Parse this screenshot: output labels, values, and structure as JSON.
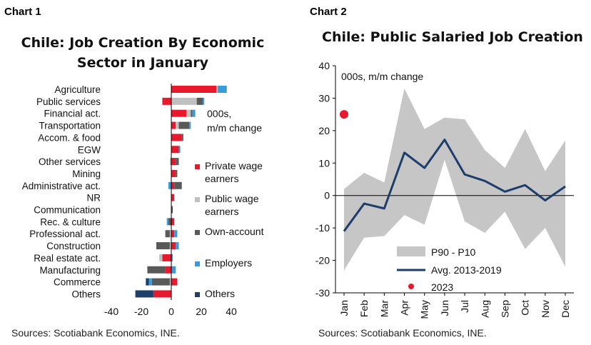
{
  "chart_data": [
    {
      "label": "Chart 1",
      "type": "bar",
      "orientation": "horizontal",
      "stacked": true,
      "title_lines": [
        "Chile: Job Creation By Economic",
        "Sector in January"
      ],
      "unit_note_lines": [
        "000s,",
        "m/m change"
      ],
      "categories": [
        "Agriculture",
        "Public services",
        "Financial act.",
        "Transportation",
        "Accom. & food",
        "EGW",
        "Other services",
        "Mining",
        "Administrative act.",
        "NR",
        "Communication",
        "Rec. & culture",
        "Professional act.",
        "Construction",
        "Real estate act.",
        "Manufacturing",
        "Commerce",
        "Others"
      ],
      "series": [
        {
          "name": "Private wage earners",
          "color": "#e8192c",
          "values": [
            30,
            -6,
            10,
            3,
            7,
            5,
            3,
            3,
            2,
            2,
            0,
            2,
            2,
            3,
            -6,
            -4,
            4,
            -12
          ]
        },
        {
          "name": "Public wage earners",
          "color": "#c0c0c0",
          "values": [
            1,
            17,
            3,
            2,
            0,
            0,
            -1,
            0,
            0,
            0,
            0,
            0,
            -1,
            -1,
            -2,
            0,
            -1,
            0
          ]
        },
        {
          "name": "Own-account",
          "color": "#595959",
          "values": [
            0,
            4,
            1,
            7,
            1,
            0,
            2,
            1,
            5,
            0,
            1,
            -2,
            -3,
            -9,
            0,
            -12,
            -12,
            0
          ]
        },
        {
          "name": "Employers",
          "color": "#3b9bd6",
          "values": [
            6,
            1,
            2,
            1,
            0,
            1,
            0,
            0,
            -2,
            0,
            0,
            -1,
            2,
            2,
            1,
            3,
            -2,
            0
          ]
        },
        {
          "name": "Others",
          "color": "#1f3f6b",
          "values": [
            0,
            0,
            0,
            0,
            0,
            0,
            0,
            0,
            0,
            0,
            0,
            0,
            0,
            0,
            0,
            0,
            -2,
            -12
          ]
        }
      ],
      "xlim": [
        -40,
        40
      ],
      "xticks": [
        "-40",
        "-20",
        "0",
        "20",
        "40"
      ],
      "source": "Sources: Scotiabank Economics, INE."
    },
    {
      "label": "Chart 2",
      "type": "line",
      "title": "Chile: Public Salaried Job Creation",
      "unit_note": "000s, m/m change",
      "x": [
        "Jan",
        "Feb",
        "Mar",
        "Apr",
        "May",
        "Jun",
        "Jul",
        "Aug",
        "Sep",
        "Oct",
        "Nov",
        "Dec"
      ],
      "band": {
        "name": "P90 - P10",
        "color": "#c6c6c6",
        "upper": [
          2,
          7,
          4,
          33,
          20.5,
          24,
          23.5,
          14,
          8.5,
          20.5,
          7.5,
          17
        ],
        "lower": [
          -23,
          -13,
          -12.5,
          -6,
          -9,
          11,
          -8,
          -11.5,
          -5,
          -16.5,
          -10,
          -22
        ]
      },
      "series": [
        {
          "name": "Avg. 2013-2019",
          "color": "#1e3d6b",
          "values": [
            -11,
            -2.5,
            -4,
            13.2,
            8.5,
            17.2,
            6.5,
            4.5,
            1.2,
            3.2,
            -1.5,
            2.8
          ]
        }
      ],
      "point": {
        "name": "2023",
        "color": "#e8192c",
        "x": "Jan",
        "y": 25
      },
      "ylim": [
        -30,
        40
      ],
      "yticks": [
        "40",
        "30",
        "20",
        "10",
        "0",
        "-10",
        "-20",
        "-30"
      ],
      "source": "Sources: Scotiabank Economics, INE."
    }
  ]
}
